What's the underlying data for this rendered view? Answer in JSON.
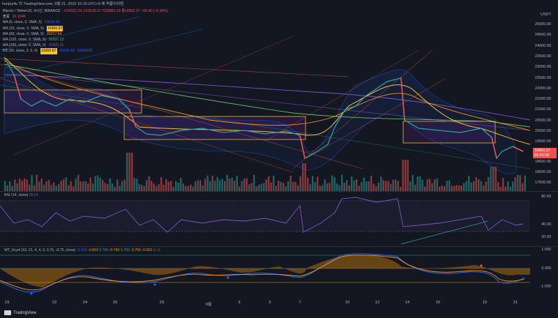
{
  "header": {
    "text": "hunjoy4u 의 TradingView.com, 9월 21, 2022 15:10 UTC+9 에 퍼블리쉬됨"
  },
  "symbol_legend": {
    "title": "Bitcoin / TetherUS, 4시간, BINANCE",
    "ohlc": "시19022.24 고19135.57 저18881.18 종18952.27 −69.90 (−0.36%)",
    "volume_label": "볼륨",
    "volume_value": "10.164K"
  },
  "ma_rows": [
    {
      "name": "MA (5, close, 0, SMA, 5)",
      "value": "19015.93",
      "color": "#2962ff"
    },
    {
      "name": "MA (20, close, 0, SMA, 5)",
      "value": "19300.87",
      "color": "#fbc02d"
    },
    {
      "name": "MA (60, close, 0, SMA, 5)",
      "value": "20217.64",
      "color": "#ff9800"
    },
    {
      "name": "MA (120, close, 0, SMA, 5)",
      "value": "20107.13",
      "color": "#66bb6a"
    },
    {
      "name": "MA (200, close, 0, SMA, 5)",
      "value": "20425.31",
      "color": "#7e57c2"
    },
    {
      "name": "BB (20, close, 2, 0, 5)",
      "values": [
        "19300.87",
        "20182.92",
        "18418.82"
      ],
      "color": "#2962ff"
    }
  ],
  "price_scale": {
    "currency": "USDT",
    "ticks": [
      "25000.00",
      "24500.00",
      "24000.00",
      "23500.00",
      "23000.00",
      "22500.00",
      "22000.00",
      "21500.00",
      "21000.00",
      "20500.00",
      "20000.00",
      "19500.00",
      "18500.00",
      "18000.00",
      "17500.00"
    ],
    "last_price": "18952.27",
    "countdown": "01:49:28",
    "last_color": "#ef5350"
  },
  "rsi": {
    "label": "RSI (14, close)",
    "value": "39.01",
    "ticks": [
      "80.00",
      "40.00",
      "20.00"
    ]
  },
  "wt": {
    "label": "WT_Kryot (10, 21, 4, 4, 0, 0.75, -0.75, close)",
    "values": [
      "-0.415",
      "-0.553",
      "0.750",
      "-0.750",
      "0.750",
      "-0.750",
      "-0.062",
      "∅",
      "∅"
    ],
    "ticks": [
      "1.000",
      "0.000",
      "-1.000"
    ]
  },
  "x_axis": [
    "19",
    "22",
    "24",
    "26",
    "29",
    "9월",
    "3",
    "5",
    "7",
    "10",
    "12",
    "14",
    "16",
    "19",
    "21"
  ],
  "footer": {
    "brand": "TradingView"
  },
  "colors": {
    "up": "#26a69a",
    "down": "#ef5350",
    "background": "#131722",
    "consolidation_box": "#fbc02d"
  }
}
